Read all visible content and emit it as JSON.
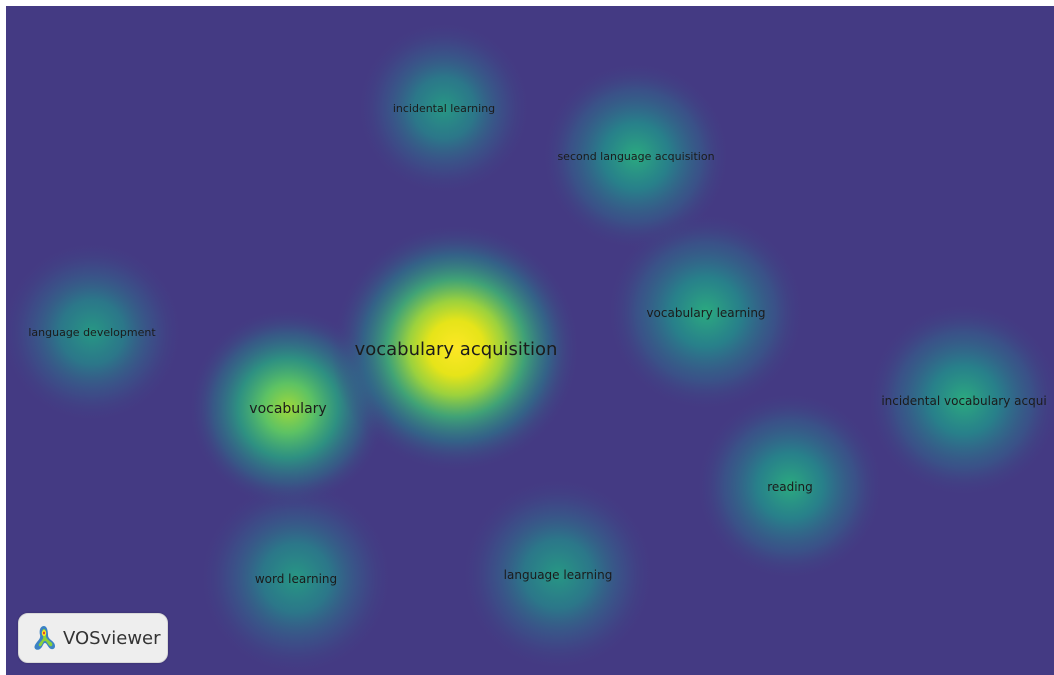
{
  "app": {
    "logo_text": "VOSviewer"
  },
  "colors": {
    "background": "#443a83",
    "density_low": "#3b518b",
    "density_mid": "#21908d",
    "density_high": "#5ec962",
    "density_peak": "#fde725"
  },
  "terms": [
    {
      "label": "vocabulary acquisition",
      "density": 1.0,
      "size": "large"
    },
    {
      "label": "vocabulary",
      "density": 0.7,
      "size": "medium"
    },
    {
      "label": "incidental learning",
      "density": 0.45,
      "size": "small"
    },
    {
      "label": "second language acquisition",
      "density": 0.45,
      "size": "small"
    },
    {
      "label": "vocabulary learning",
      "density": 0.5,
      "size": "small"
    },
    {
      "label": "language development",
      "density": 0.4,
      "size": "small"
    },
    {
      "label": "incidental vocabulary acqui",
      "density": 0.45,
      "size": "small"
    },
    {
      "label": "reading",
      "density": 0.5,
      "size": "small"
    },
    {
      "label": "word learning",
      "density": 0.45,
      "size": "small"
    },
    {
      "label": "language learning",
      "density": 0.45,
      "size": "small"
    }
  ]
}
